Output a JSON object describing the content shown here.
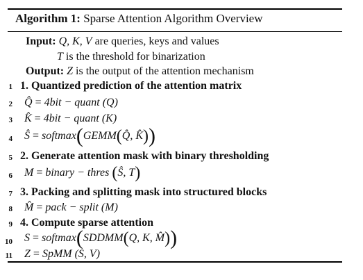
{
  "algorithm": {
    "label": "Algorithm 1:",
    "name": "Sparse Attention Algorithm Overview"
  },
  "io": {
    "input_label": "Input:",
    "input_vars": "Q, K, V",
    "input_text": "are queries, keys and values",
    "threshold_var": "T",
    "threshold_text": "is the threshold for binarization",
    "output_label": "Output:",
    "output_var": "Z",
    "output_text": "is the output of the attention mechanism"
  },
  "lines": [
    {
      "num": "1",
      "text": "1. Quantized prediction of the attention matrix"
    },
    {
      "num": "2",
      "lhs": "Q̂",
      "rhs": "4bit − quant (Q)"
    },
    {
      "num": "3",
      "lhs": "K̂",
      "rhs": "4bit − quant (K)"
    },
    {
      "num": "4",
      "lhs": "Ŝ",
      "rhs_a": "softmax",
      "rhs_b": "GEMM",
      "rhs_c": "Q̂, K̂"
    },
    {
      "num": "5",
      "text": "2. Generate attention mask with binary thresholding"
    },
    {
      "num": "6",
      "lhs": "M",
      "rhs_a": "binary − thres",
      "rhs_b": "Ŝ, T"
    },
    {
      "num": "7",
      "text": "3. Packing and splitting mask into structured blocks"
    },
    {
      "num": "8",
      "lhs": "M̂",
      "rhs": "pack − split (M)"
    },
    {
      "num": "9",
      "text": "4. Compute sparse attention"
    },
    {
      "num": "10",
      "lhs": "S",
      "rhs_a": "softmax",
      "rhs_b": "SDDMM",
      "rhs_c": "Q, K, M̂"
    },
    {
      "num": "11",
      "lhs": "Z",
      "rhs": "SpMM (S, V)"
    }
  ]
}
